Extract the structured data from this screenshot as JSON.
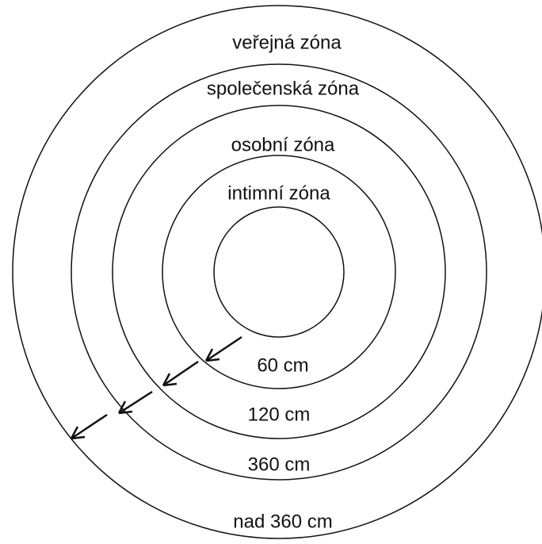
{
  "zones": [
    {
      "name": "intimní zóna",
      "distance": "60 cm"
    },
    {
      "name": "osobní zóna",
      "distance": "120 cm"
    },
    {
      "name": "společenská zóna",
      "distance": "360 cm"
    },
    {
      "name": "veřejná zóna",
      "distance": "nad 360 cm"
    }
  ]
}
